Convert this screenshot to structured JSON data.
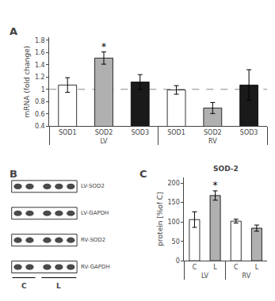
{
  "chart_data": [
    {
      "type": "bar",
      "title": "A",
      "ylabel": "mRNA (fold change)",
      "categories": [
        "SOD1",
        "SOD2",
        "SOD3"
      ],
      "series": [
        {
          "name": "LV",
          "values": [
            1.07,
            1.51,
            1.12
          ],
          "errors": [
            0.12,
            0.1,
            0.12
          ],
          "colors": [
            "white",
            "#b0b0b0",
            "#1a1a1a"
          ]
        },
        {
          "name": "RV",
          "values": [
            0.99,
            0.695,
            1.07
          ],
          "errors": [
            0.07,
            0.09,
            0.25
          ],
          "colors": [
            "white",
            "#b0b0b0",
            "#1a1a1a"
          ]
        }
      ],
      "hline": 1,
      "annotations": [
        {
          "text": "*",
          "series": "LV",
          "category": "SOD2"
        }
      ],
      "ylim": [
        0.4,
        1.85
      ],
      "yticks": [
        0.4,
        0.6,
        0.8,
        1,
        1.2,
        1.4,
        1.6,
        1.8
      ],
      "grid": false
    },
    {
      "type": "blot",
      "title": "B",
      "categories": [
        "LV-SOD2",
        "LV-GAPDH",
        "RV-SOD2",
        "RV-GAPDH"
      ],
      "lanes": [
        "C",
        "C",
        "L",
        "L",
        "L"
      ]
    },
    {
      "type": "bar",
      "title": "C",
      "subtitle": "SOD-2",
      "ylabel": "protein [%of C]",
      "categories": [
        "C",
        "L"
      ],
      "series": [
        {
          "name": "LV",
          "values": [
            106,
            168
          ],
          "errors": [
            20,
            12
          ],
          "colors": [
            "white",
            "#b0b0b0"
          ]
        },
        {
          "name": "RV",
          "values": [
            102,
            84
          ],
          "errors": [
            5,
            8
          ],
          "colors": [
            "white",
            "#b0b0b0"
          ]
        }
      ],
      "annotations": [
        {
          "text": "*",
          "series": "LV",
          "category": "L"
        }
      ],
      "ylim": [
        0,
        215
      ],
      "yticks": [
        0,
        50,
        100,
        150,
        200
      ],
      "grid": false
    }
  ]
}
